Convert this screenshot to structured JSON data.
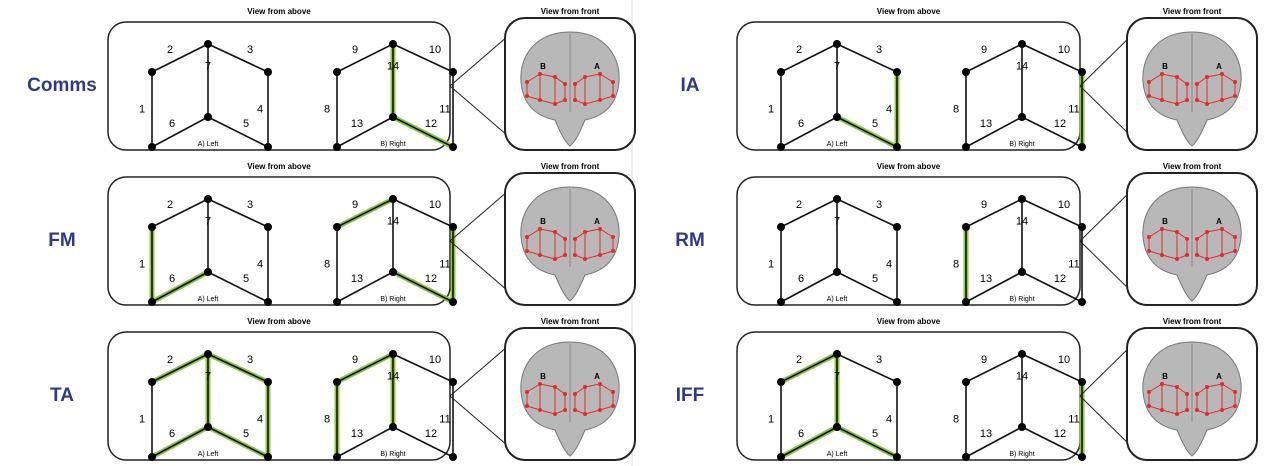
{
  "panels": [
    {
      "label": "Comms",
      "view_above": "View from above",
      "view_front": "View from front",
      "left_caption": "A) Left",
      "right_caption": "B) Right",
      "brain_labels": [
        "B",
        "A"
      ],
      "edges": [
        {
          "label": "1",
          "active": false
        },
        {
          "label": "2",
          "active": false
        },
        {
          "label": "3",
          "active": false
        },
        {
          "label": "4",
          "active": false
        },
        {
          "label": "5",
          "active": false
        },
        {
          "label": "6",
          "active": false
        },
        {
          "label": "7",
          "active": false
        },
        {
          "label": "8",
          "active": false
        },
        {
          "label": "9",
          "active": false
        },
        {
          "label": "10",
          "active": false
        },
        {
          "label": "11",
          "active": false
        },
        {
          "label": "12",
          "active": true
        },
        {
          "label": "13",
          "active": false
        },
        {
          "label": "14",
          "active": true
        }
      ]
    },
    {
      "label": "FM",
      "view_above": "View from above",
      "view_front": "View from front",
      "left_caption": "A) Left",
      "right_caption": "B) Right",
      "brain_labels": [
        "B",
        "A"
      ],
      "edges": [
        {
          "label": "1",
          "active": true
        },
        {
          "label": "2",
          "active": false
        },
        {
          "label": "3",
          "active": false
        },
        {
          "label": "4",
          "active": false
        },
        {
          "label": "5",
          "active": false
        },
        {
          "label": "6",
          "active": true
        },
        {
          "label": "7",
          "active": false
        },
        {
          "label": "8",
          "active": false
        },
        {
          "label": "9",
          "active": true
        },
        {
          "label": "10",
          "active": false
        },
        {
          "label": "11",
          "active": true
        },
        {
          "label": "12",
          "active": true
        },
        {
          "label": "13",
          "active": false
        },
        {
          "label": "14",
          "active": false
        }
      ]
    },
    {
      "label": "TA",
      "view_above": "View from above",
      "view_front": "View from front",
      "left_caption": "A) Left",
      "right_caption": "B) Right",
      "brain_labels": [
        "B",
        "A"
      ],
      "edges": [
        {
          "label": "1",
          "active": false
        },
        {
          "label": "2",
          "active": true
        },
        {
          "label": "3",
          "active": true
        },
        {
          "label": "4",
          "active": true
        },
        {
          "label": "5",
          "active": true
        },
        {
          "label": "6",
          "active": true
        },
        {
          "label": "7",
          "active": true
        },
        {
          "label": "8",
          "active": true
        },
        {
          "label": "9",
          "active": true
        },
        {
          "label": "10",
          "active": false
        },
        {
          "label": "11",
          "active": false
        },
        {
          "label": "12",
          "active": false
        },
        {
          "label": "13",
          "active": false
        },
        {
          "label": "14",
          "active": true
        }
      ]
    },
    {
      "label": "IA",
      "view_above": "View from above",
      "view_front": "View from front",
      "left_caption": "A) Left",
      "right_caption": "B) Right",
      "brain_labels": [
        "B",
        "A"
      ],
      "edges": [
        {
          "label": "1",
          "active": false
        },
        {
          "label": "2",
          "active": false
        },
        {
          "label": "3",
          "active": false
        },
        {
          "label": "4",
          "active": true
        },
        {
          "label": "5",
          "active": true
        },
        {
          "label": "6",
          "active": false
        },
        {
          "label": "7",
          "active": false
        },
        {
          "label": "8",
          "active": false
        },
        {
          "label": "9",
          "active": false
        },
        {
          "label": "10",
          "active": false
        },
        {
          "label": "11",
          "active": true
        },
        {
          "label": "12",
          "active": false
        },
        {
          "label": "13",
          "active": false
        },
        {
          "label": "14",
          "active": false
        }
      ]
    },
    {
      "label": "RM",
      "view_above": "View from above",
      "view_front": "View from front",
      "left_caption": "A) Left",
      "right_caption": "B) Right",
      "brain_labels": [
        "B",
        "A"
      ],
      "edges": [
        {
          "label": "1",
          "active": false
        },
        {
          "label": "2",
          "active": false
        },
        {
          "label": "3",
          "active": false
        },
        {
          "label": "4",
          "active": false
        },
        {
          "label": "5",
          "active": false
        },
        {
          "label": "6",
          "active": false
        },
        {
          "label": "7",
          "active": false
        },
        {
          "label": "8",
          "active": true
        },
        {
          "label": "9",
          "active": false
        },
        {
          "label": "10",
          "active": false
        },
        {
          "label": "11",
          "active": false
        },
        {
          "label": "12",
          "active": false
        },
        {
          "label": "13",
          "active": false
        },
        {
          "label": "14",
          "active": false
        }
      ]
    },
    {
      "label": "IFF",
      "view_above": "View from above",
      "view_front": "View from front",
      "left_caption": "A) Left",
      "right_caption": "B) Right",
      "brain_labels": [
        "B",
        "A"
      ],
      "edges": [
        {
          "label": "1",
          "active": false
        },
        {
          "label": "2",
          "active": true
        },
        {
          "label": "3",
          "active": false
        },
        {
          "label": "4",
          "active": false
        },
        {
          "label": "5",
          "active": true
        },
        {
          "label": "6",
          "active": true
        },
        {
          "label": "7",
          "active": true
        },
        {
          "label": "8",
          "active": false
        },
        {
          "label": "9",
          "active": false
        },
        {
          "label": "10",
          "active": false
        },
        {
          "label": "11",
          "active": true
        },
        {
          "label": "12",
          "active": false
        },
        {
          "label": "13",
          "active": false
        },
        {
          "label": "14",
          "active": false
        }
      ]
    }
  ]
}
